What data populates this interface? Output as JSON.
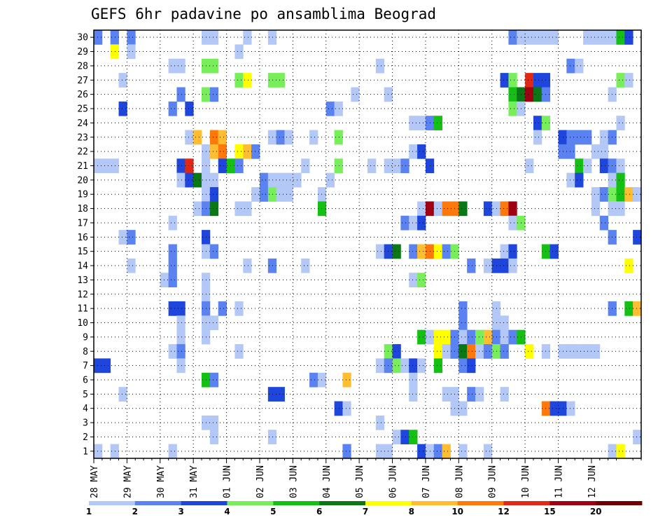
{
  "chart_data": {
    "type": "heatmap",
    "title": "GEFS 6hr padavine po ansamblima Beograd",
    "xlabel": "",
    "ylabel": "",
    "x_tick_labels": [
      "28 MAY",
      "29 MAY",
      "30 MAY",
      "31 MAY",
      "01 JUN",
      "02 JUN",
      "03 JUN",
      "04 JUN",
      "05 JUN",
      "06 JUN",
      "07 JUN",
      "08 JUN",
      "09 JUN",
      "10 JUN",
      "11 JUN",
      "12 JUN"
    ],
    "y_tick_labels": [
      "1",
      "2",
      "3",
      "4",
      "5",
      "6",
      "7",
      "8",
      "9",
      "10",
      "11",
      "12",
      "13",
      "14",
      "15",
      "16",
      "17",
      "18",
      "19",
      "20",
      "21",
      "22",
      "23",
      "24",
      "25",
      "26",
      "27",
      "28",
      "29",
      "30"
    ],
    "ylim": [
      1,
      30
    ],
    "steps_per_day": 4,
    "grid": true,
    "colorbar_labels": [
      "1",
      "2",
      "3",
      "4",
      "5",
      "6",
      "7",
      "8",
      "10",
      "12",
      "15",
      "20"
    ],
    "colorbar_colors": [
      "#b4c8f8",
      "#5a82f0",
      "#1e46dc",
      "#78ee5a",
      "#14c014",
      "#0a7814",
      "#ffff00",
      "#ffbe32",
      "#ff780a",
      "#e12814",
      "#a00014",
      "#6e0000"
    ],
    "cells": [
      [
        30,
        0,
        2
      ],
      [
        30,
        2,
        2
      ],
      [
        30,
        4,
        2
      ],
      [
        30,
        13,
        1
      ],
      [
        30,
        14,
        1
      ],
      [
        30,
        18,
        1
      ],
      [
        30,
        21,
        1
      ],
      [
        30,
        50,
        2
      ],
      [
        30,
        51,
        1
      ],
      [
        30,
        52,
        1
      ],
      [
        30,
        53,
        1
      ],
      [
        30,
        54,
        1
      ],
      [
        30,
        55,
        1
      ],
      [
        30,
        59,
        1
      ],
      [
        30,
        60,
        1
      ],
      [
        30,
        61,
        1
      ],
      [
        30,
        62,
        1
      ],
      [
        30,
        63,
        5
      ],
      [
        30,
        64,
        3
      ],
      [
        29,
        2,
        7
      ],
      [
        29,
        4,
        1
      ],
      [
        29,
        17,
        1
      ],
      [
        28,
        9,
        1
      ],
      [
        28,
        10,
        1
      ],
      [
        28,
        13,
        4
      ],
      [
        28,
        14,
        4
      ],
      [
        28,
        34,
        1
      ],
      [
        28,
        57,
        2
      ],
      [
        28,
        58,
        1
      ],
      [
        27,
        3,
        1
      ],
      [
        27,
        17,
        4
      ],
      [
        27,
        18,
        7
      ],
      [
        27,
        21,
        4
      ],
      [
        27,
        22,
        4
      ],
      [
        27,
        49,
        3
      ],
      [
        27,
        50,
        4
      ],
      [
        27,
        52,
        10
      ],
      [
        27,
        53,
        3
      ],
      [
        27,
        54,
        3
      ],
      [
        27,
        63,
        4
      ],
      [
        27,
        64,
        1
      ],
      [
        26,
        10,
        2
      ],
      [
        26,
        13,
        4
      ],
      [
        26,
        14,
        2
      ],
      [
        26,
        31,
        1
      ],
      [
        26,
        35,
        1
      ],
      [
        26,
        50,
        5
      ],
      [
        26,
        51,
        6
      ],
      [
        26,
        52,
        11
      ],
      [
        26,
        53,
        6
      ],
      [
        26,
        54,
        2
      ],
      [
        26,
        62,
        1
      ],
      [
        25,
        3,
        3
      ],
      [
        25,
        9,
        2
      ],
      [
        25,
        11,
        3
      ],
      [
        25,
        28,
        2
      ],
      [
        25,
        29,
        1
      ],
      [
        25,
        50,
        4
      ],
      [
        25,
        51,
        1
      ],
      [
        24,
        38,
        1
      ],
      [
        24,
        39,
        1
      ],
      [
        24,
        40,
        2
      ],
      [
        24,
        41,
        5
      ],
      [
        24,
        53,
        3
      ],
      [
        24,
        54,
        4
      ],
      [
        24,
        63,
        1
      ],
      [
        23,
        11,
        1
      ],
      [
        23,
        12,
        8
      ],
      [
        23,
        14,
        9
      ],
      [
        23,
        15,
        8
      ],
      [
        23,
        21,
        1
      ],
      [
        23,
        22,
        2
      ],
      [
        23,
        23,
        1
      ],
      [
        23,
        26,
        1
      ],
      [
        23,
        29,
        4
      ],
      [
        23,
        53,
        1
      ],
      [
        23,
        56,
        3
      ],
      [
        23,
        57,
        2
      ],
      [
        23,
        58,
        2
      ],
      [
        23,
        59,
        2
      ],
      [
        23,
        61,
        1
      ],
      [
        23,
        62,
        2
      ],
      [
        22,
        13,
        1
      ],
      [
        22,
        14,
        8
      ],
      [
        22,
        15,
        9
      ],
      [
        22,
        17,
        7
      ],
      [
        22,
        18,
        8
      ],
      [
        22,
        19,
        2
      ],
      [
        22,
        38,
        1
      ],
      [
        22,
        39,
        3
      ],
      [
        22,
        56,
        2
      ],
      [
        22,
        57,
        2
      ],
      [
        22,
        60,
        1
      ],
      [
        22,
        61,
        1
      ],
      [
        21,
        0,
        1
      ],
      [
        21,
        1,
        1
      ],
      [
        21,
        2,
        1
      ],
      [
        21,
        10,
        3
      ],
      [
        21,
        11,
        10
      ],
      [
        21,
        13,
        1
      ],
      [
        21,
        15,
        3
      ],
      [
        21,
        16,
        5
      ],
      [
        21,
        17,
        2
      ],
      [
        21,
        25,
        1
      ],
      [
        21,
        29,
        4
      ],
      [
        21,
        33,
        1
      ],
      [
        21,
        35,
        1
      ],
      [
        21,
        36,
        1
      ],
      [
        21,
        37,
        2
      ],
      [
        21,
        40,
        3
      ],
      [
        21,
        52,
        1
      ],
      [
        21,
        58,
        5
      ],
      [
        21,
        59,
        1
      ],
      [
        21,
        61,
        3
      ],
      [
        21,
        62,
        2
      ],
      [
        21,
        63,
        1
      ],
      [
        20,
        10,
        1
      ],
      [
        20,
        11,
        3
      ],
      [
        20,
        12,
        6
      ],
      [
        20,
        13,
        1
      ],
      [
        20,
        14,
        1
      ],
      [
        20,
        20,
        2
      ],
      [
        20,
        21,
        1
      ],
      [
        20,
        22,
        1
      ],
      [
        20,
        23,
        1
      ],
      [
        20,
        24,
        1
      ],
      [
        20,
        28,
        1
      ],
      [
        20,
        57,
        1
      ],
      [
        20,
        58,
        3
      ],
      [
        20,
        62,
        1
      ],
      [
        20,
        63,
        5
      ],
      [
        19,
        13,
        1
      ],
      [
        19,
        14,
        3
      ],
      [
        19,
        19,
        1
      ],
      [
        19,
        20,
        2
      ],
      [
        19,
        21,
        4
      ],
      [
        19,
        22,
        1
      ],
      [
        19,
        23,
        1
      ],
      [
        19,
        27,
        1
      ],
      [
        19,
        60,
        1
      ],
      [
        19,
        61,
        2
      ],
      [
        19,
        62,
        4
      ],
      [
        19,
        63,
        5
      ],
      [
        19,
        64,
        8
      ],
      [
        19,
        65,
        1
      ],
      [
        18,
        12,
        1
      ],
      [
        18,
        13,
        2
      ],
      [
        18,
        14,
        6
      ],
      [
        18,
        17,
        1
      ],
      [
        18,
        18,
        1
      ],
      [
        18,
        27,
        5
      ],
      [
        18,
        39,
        1
      ],
      [
        18,
        40,
        11
      ],
      [
        18,
        41,
        1
      ],
      [
        18,
        42,
        9
      ],
      [
        18,
        43,
        9
      ],
      [
        18,
        44,
        6
      ],
      [
        18,
        47,
        3
      ],
      [
        18,
        48,
        1
      ],
      [
        18,
        49,
        9
      ],
      [
        18,
        50,
        11
      ],
      [
        18,
        60,
        1
      ],
      [
        18,
        62,
        1
      ],
      [
        18,
        63,
        1
      ],
      [
        17,
        9,
        1
      ],
      [
        17,
        37,
        2
      ],
      [
        17,
        38,
        1
      ],
      [
        17,
        39,
        3
      ],
      [
        17,
        50,
        1
      ],
      [
        17,
        51,
        4
      ],
      [
        17,
        61,
        2
      ],
      [
        16,
        3,
        1
      ],
      [
        16,
        4,
        2
      ],
      [
        16,
        13,
        3
      ],
      [
        16,
        62,
        2
      ],
      [
        16,
        65,
        3
      ],
      [
        15,
        9,
        2
      ],
      [
        15,
        13,
        1
      ],
      [
        15,
        14,
        2
      ],
      [
        15,
        34,
        1
      ],
      [
        15,
        35,
        3
      ],
      [
        15,
        36,
        6
      ],
      [
        15,
        38,
        2
      ],
      [
        15,
        39,
        8
      ],
      [
        15,
        40,
        9
      ],
      [
        15,
        41,
        7
      ],
      [
        15,
        42,
        2
      ],
      [
        15,
        43,
        4
      ],
      [
        15,
        49,
        1
      ],
      [
        15,
        50,
        3
      ],
      [
        15,
        54,
        5
      ],
      [
        15,
        55,
        3
      ],
      [
        14,
        4,
        1
      ],
      [
        14,
        9,
        2
      ],
      [
        14,
        18,
        1
      ],
      [
        14,
        21,
        2
      ],
      [
        14,
        25,
        1
      ],
      [
        14,
        45,
        2
      ],
      [
        14,
        47,
        1
      ],
      [
        14,
        48,
        3
      ],
      [
        14,
        49,
        3
      ],
      [
        14,
        50,
        1
      ],
      [
        14,
        64,
        7
      ],
      [
        13,
        8,
        1
      ],
      [
        13,
        9,
        2
      ],
      [
        13,
        13,
        1
      ],
      [
        13,
        38,
        1
      ],
      [
        13,
        39,
        4
      ],
      [
        12,
        13,
        1
      ],
      [
        11,
        9,
        3
      ],
      [
        11,
        10,
        3
      ],
      [
        11,
        13,
        2
      ],
      [
        11,
        15,
        2
      ],
      [
        11,
        17,
        1
      ],
      [
        11,
        44,
        2
      ],
      [
        11,
        48,
        1
      ],
      [
        11,
        62,
        2
      ],
      [
        11,
        64,
        5
      ],
      [
        11,
        65,
        8
      ],
      [
        10,
        10,
        1
      ],
      [
        10,
        13,
        1
      ],
      [
        10,
        14,
        1
      ],
      [
        10,
        44,
        2
      ],
      [
        10,
        48,
        1
      ],
      [
        10,
        49,
        1
      ],
      [
        9,
        10,
        1
      ],
      [
        9,
        13,
        1
      ],
      [
        9,
        39,
        5
      ],
      [
        9,
        40,
        1
      ],
      [
        9,
        41,
        7
      ],
      [
        9,
        42,
        7
      ],
      [
        9,
        43,
        2
      ],
      [
        9,
        44,
        1
      ],
      [
        9,
        45,
        2
      ],
      [
        9,
        46,
        4
      ],
      [
        9,
        47,
        8
      ],
      [
        9,
        48,
        2
      ],
      [
        9,
        49,
        1
      ],
      [
        9,
        50,
        2
      ],
      [
        9,
        51,
        5
      ],
      [
        8,
        9,
        1
      ],
      [
        8,
        10,
        2
      ],
      [
        8,
        17,
        1
      ],
      [
        8,
        35,
        4
      ],
      [
        8,
        36,
        3
      ],
      [
        8,
        41,
        7
      ],
      [
        8,
        42,
        1
      ],
      [
        8,
        43,
        2
      ],
      [
        8,
        44,
        6
      ],
      [
        8,
        45,
        9
      ],
      [
        8,
        46,
        1
      ],
      [
        8,
        47,
        2
      ],
      [
        8,
        48,
        4
      ],
      [
        8,
        49,
        2
      ],
      [
        8,
        52,
        7
      ],
      [
        8,
        54,
        1
      ],
      [
        8,
        56,
        1
      ],
      [
        8,
        57,
        1
      ],
      [
        8,
        58,
        1
      ],
      [
        8,
        59,
        1
      ],
      [
        8,
        60,
        1
      ],
      [
        7,
        0,
        3
      ],
      [
        7,
        1,
        3
      ],
      [
        7,
        10,
        1
      ],
      [
        7,
        34,
        1
      ],
      [
        7,
        35,
        2
      ],
      [
        7,
        36,
        4
      ],
      [
        7,
        37,
        1
      ],
      [
        7,
        38,
        3
      ],
      [
        7,
        39,
        1
      ],
      [
        7,
        41,
        5
      ],
      [
        7,
        44,
        2
      ],
      [
        7,
        45,
        3
      ],
      [
        6,
        13,
        5
      ],
      [
        6,
        14,
        2
      ],
      [
        6,
        26,
        2
      ],
      [
        6,
        27,
        1
      ],
      [
        6,
        30,
        8
      ],
      [
        6,
        38,
        1
      ],
      [
        5,
        3,
        1
      ],
      [
        5,
        21,
        3
      ],
      [
        5,
        22,
        3
      ],
      [
        5,
        38,
        1
      ],
      [
        5,
        42,
        1
      ],
      [
        5,
        43,
        1
      ],
      [
        5,
        45,
        2
      ],
      [
        5,
        46,
        1
      ],
      [
        5,
        49,
        1
      ],
      [
        4,
        29,
        3
      ],
      [
        4,
        30,
        1
      ],
      [
        4,
        43,
        1
      ],
      [
        4,
        44,
        1
      ],
      [
        4,
        54,
        9
      ],
      [
        4,
        55,
        3
      ],
      [
        4,
        56,
        3
      ],
      [
        4,
        57,
        1
      ],
      [
        3,
        13,
        1
      ],
      [
        3,
        14,
        1
      ],
      [
        3,
        34,
        1
      ],
      [
        2,
        14,
        1
      ],
      [
        2,
        21,
        1
      ],
      [
        2,
        36,
        1
      ],
      [
        2,
        37,
        3
      ],
      [
        2,
        38,
        5
      ],
      [
        2,
        65,
        1
      ],
      [
        1,
        0,
        1
      ],
      [
        1,
        2,
        1
      ],
      [
        1,
        9,
        1
      ],
      [
        1,
        30,
        2
      ],
      [
        1,
        34,
        1
      ],
      [
        1,
        35,
        1
      ],
      [
        1,
        39,
        3
      ],
      [
        1,
        40,
        1
      ],
      [
        1,
        41,
        2
      ],
      [
        1,
        42,
        8
      ],
      [
        1,
        44,
        1
      ],
      [
        1,
        47,
        1
      ],
      [
        1,
        62,
        1
      ],
      [
        1,
        63,
        7
      ]
    ]
  }
}
